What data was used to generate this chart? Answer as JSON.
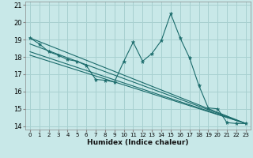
{
  "xlabel": "Humidex (Indice chaleur)",
  "bg_color": "#c8e8e8",
  "grid_color": "#a8d0d0",
  "line_color": "#1a6b6b",
  "xlim": [
    -0.5,
    23.5
  ],
  "ylim": [
    13.8,
    21.2
  ],
  "yticks": [
    14,
    15,
    16,
    17,
    18,
    19,
    20,
    21
  ],
  "xticks": [
    0,
    1,
    2,
    3,
    4,
    5,
    6,
    7,
    8,
    9,
    10,
    11,
    12,
    13,
    14,
    15,
    16,
    17,
    18,
    19,
    20,
    21,
    22,
    23
  ],
  "series": [
    [
      0,
      19.1
    ],
    [
      1,
      18.75
    ],
    [
      2,
      18.3
    ],
    [
      3,
      18.1
    ],
    [
      4,
      17.85
    ],
    [
      5,
      17.75
    ],
    [
      6,
      17.5
    ],
    [
      7,
      16.7
    ],
    [
      8,
      16.65
    ],
    [
      9,
      16.55
    ],
    [
      10,
      17.75
    ],
    [
      11,
      18.85
    ],
    [
      12,
      17.75
    ],
    [
      13,
      18.2
    ],
    [
      14,
      18.95
    ],
    [
      15,
      20.5
    ],
    [
      16,
      19.1
    ],
    [
      17,
      17.95
    ],
    [
      18,
      16.35
    ],
    [
      19,
      15.05
    ],
    [
      20,
      15.0
    ],
    [
      21,
      14.2
    ],
    [
      22,
      14.15
    ],
    [
      23,
      14.15
    ]
  ],
  "trend_lines": [
    [
      [
        0,
        19.1
      ],
      [
        23,
        14.15
      ]
    ],
    [
      [
        0,
        18.75
      ],
      [
        23,
        14.15
      ]
    ],
    [
      [
        0,
        18.3
      ],
      [
        23,
        14.15
      ]
    ],
    [
      [
        0,
        18.1
      ],
      [
        23,
        14.15
      ]
    ]
  ]
}
